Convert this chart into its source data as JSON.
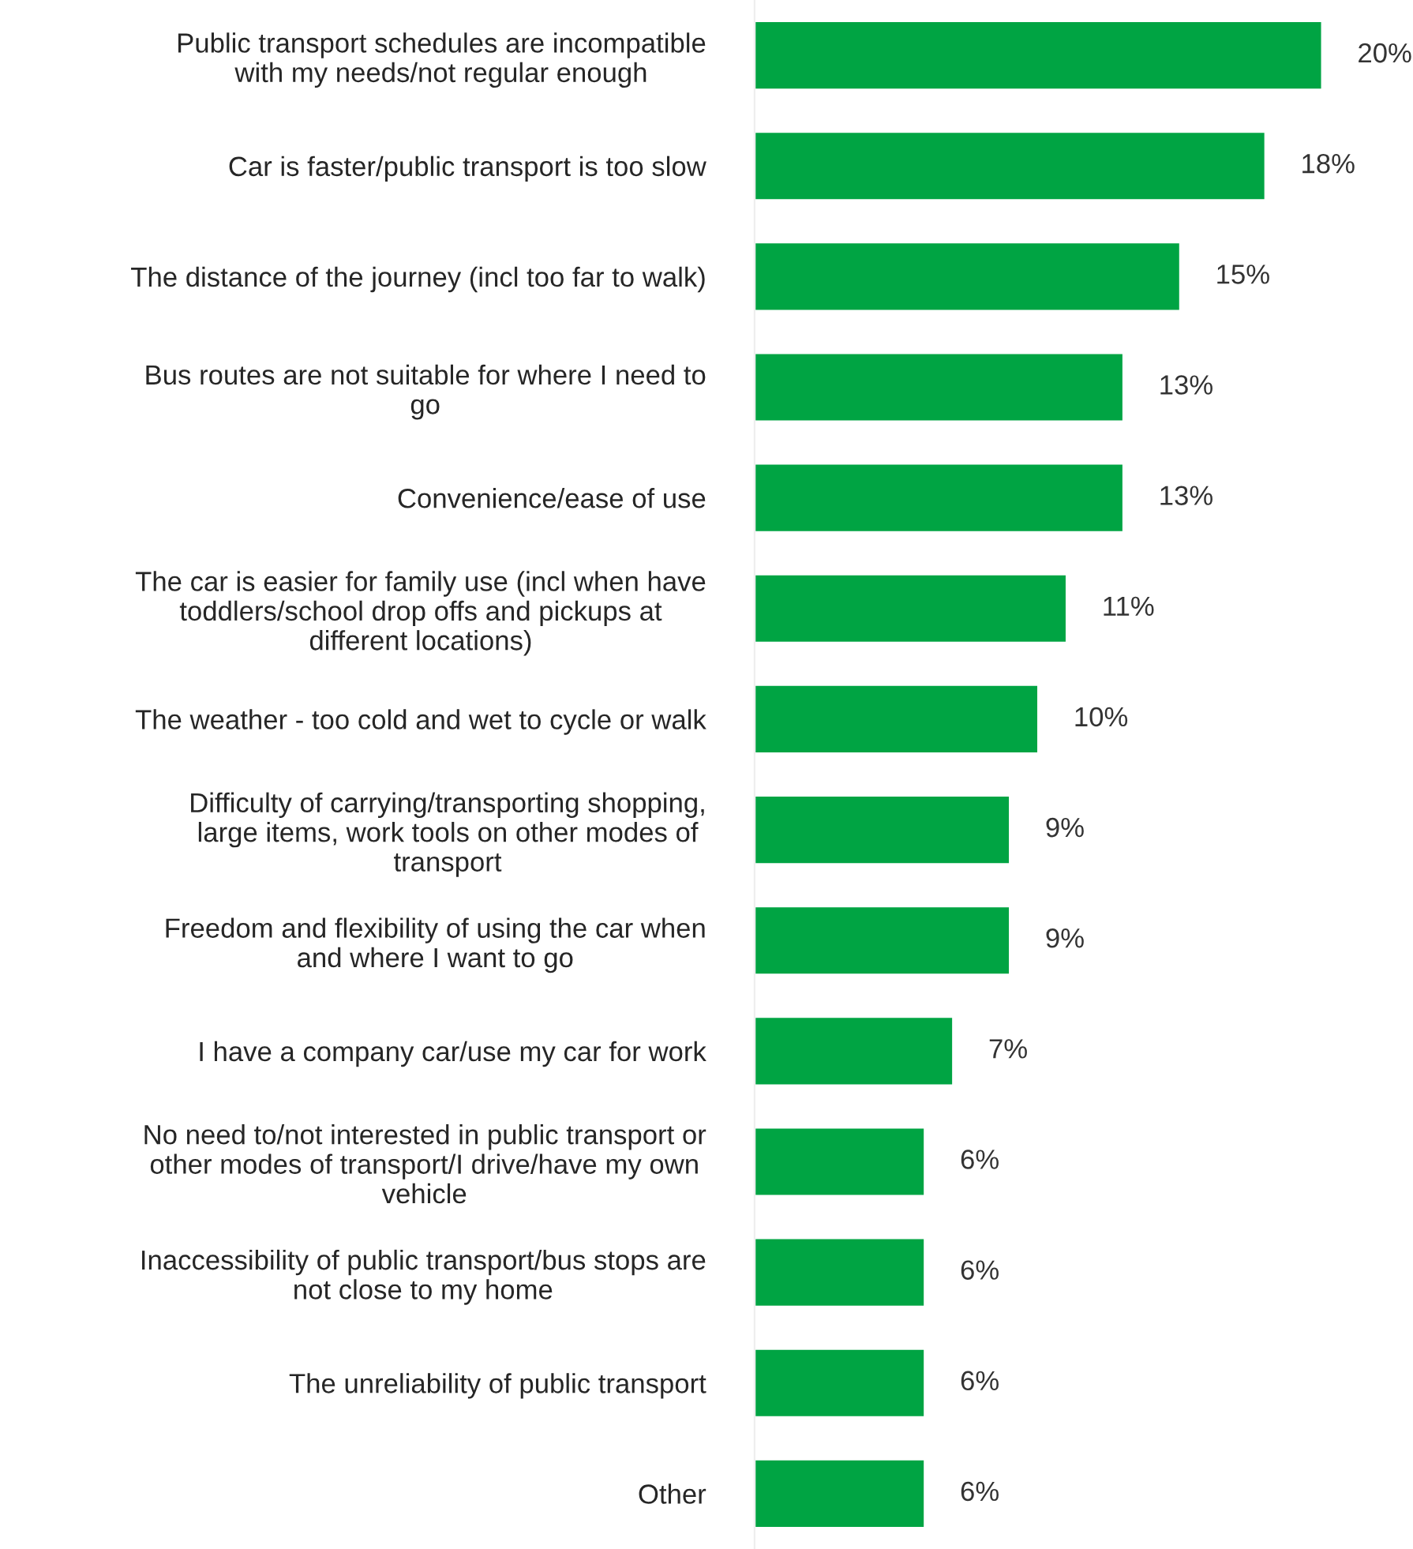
{
  "chart_data": {
    "type": "bar",
    "orientation": "horizontal",
    "categories": [
      "Public transport schedules are incompatible\nwith my needs/not regular enough",
      "Car is faster/public transport is too slow",
      "The distance of the journey (incl too far to walk)",
      "Bus routes are not suitable for where I need to\ngo",
      "Convenience/ease of use",
      "The car is easier for family use (incl when have\ntoddlers/school drop offs and pickups at\ndifferent locations)",
      "The weather - too cold and wet to cycle or walk",
      "Difficulty of carrying/transporting shopping,\nlarge items, work tools on other modes of\ntransport",
      "Freedom and flexibility of using the car when\nand where I want to go",
      "I have a company car/use my car for work",
      "No need to/not interested in public transport or\nother modes of transport/I drive/have my own\nvehicle",
      "Inaccessibility of public transport/bus stops are\nnot close to my home",
      "The unreliability of public transport",
      "Other"
    ],
    "values": [
      20,
      18,
      15,
      13,
      13,
      11,
      10,
      9,
      9,
      7,
      6,
      6,
      6,
      6
    ],
    "value_labels": [
      "20%",
      "18%",
      "15%",
      "13%",
      "13%",
      "11%",
      "10%",
      "9%",
      "9%",
      "7%",
      "6%",
      "6%",
      "6%",
      "6%"
    ],
    "color": "#00a443",
    "grid": false,
    "legend": false
  }
}
